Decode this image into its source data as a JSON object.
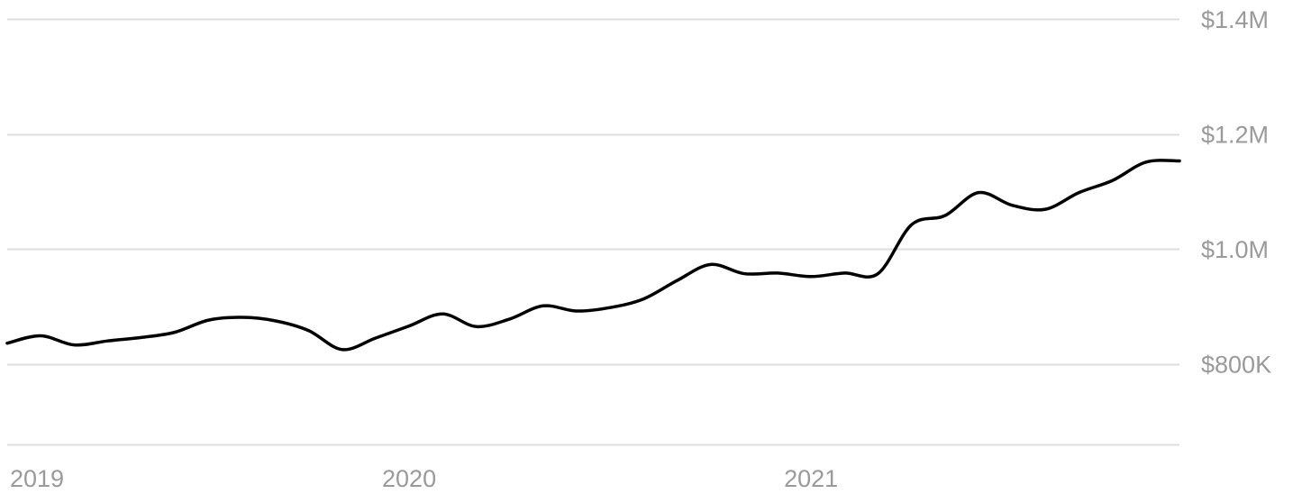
{
  "chart_data": {
    "type": "line",
    "title": "",
    "xlabel": "",
    "ylabel": "",
    "ylim": [
      660000,
      1400000
    ],
    "xlim": [
      "2019-01",
      "2021-12"
    ],
    "grid": true,
    "y_axis_side": "right",
    "line_color": "#000000",
    "grid_color": "#dddddd",
    "label_color": "#9a9a9a",
    "y_ticks": [
      {
        "value": 800000,
        "label": "$800K"
      },
      {
        "value": 1000000,
        "label": "$1.0M"
      },
      {
        "value": 1200000,
        "label": "$1.2M"
      },
      {
        "value": 1400000,
        "label": "$1.4M"
      }
    ],
    "x_ticks": [
      {
        "value": "2019-01",
        "label": "2019"
      },
      {
        "value": "2020-01",
        "label": "2020"
      },
      {
        "value": "2021-01",
        "label": "2021"
      }
    ],
    "series": [
      {
        "x": [
          "2019-01",
          "2019-02",
          "2019-03",
          "2019-04",
          "2019-05",
          "2019-06",
          "2019-07",
          "2019-08",
          "2019-09",
          "2019-10",
          "2019-11",
          "2019-12",
          "2020-01",
          "2020-02",
          "2020-03",
          "2020-04",
          "2020-05",
          "2020-06",
          "2020-07",
          "2020-08",
          "2020-09",
          "2020-10",
          "2020-11",
          "2020-12",
          "2021-01",
          "2021-02",
          "2021-03",
          "2021-04",
          "2021-05",
          "2021-06",
          "2021-07",
          "2021-08",
          "2021-09",
          "2021-10",
          "2021-11",
          "2021-12"
        ],
        "values": [
          836000,
          849000,
          833000,
          840000,
          846000,
          855000,
          876000,
          881000,
          875000,
          858000,
          825000,
          845000,
          866000,
          887000,
          865000,
          878000,
          901000,
          892000,
          898000,
          913000,
          945000,
          973000,
          957000,
          958000,
          952000,
          958000,
          957000,
          1042000,
          1058000,
          1098000,
          1076000,
          1069000,
          1098000,
          1119000,
          1151000,
          1153000
        ]
      }
    ]
  }
}
